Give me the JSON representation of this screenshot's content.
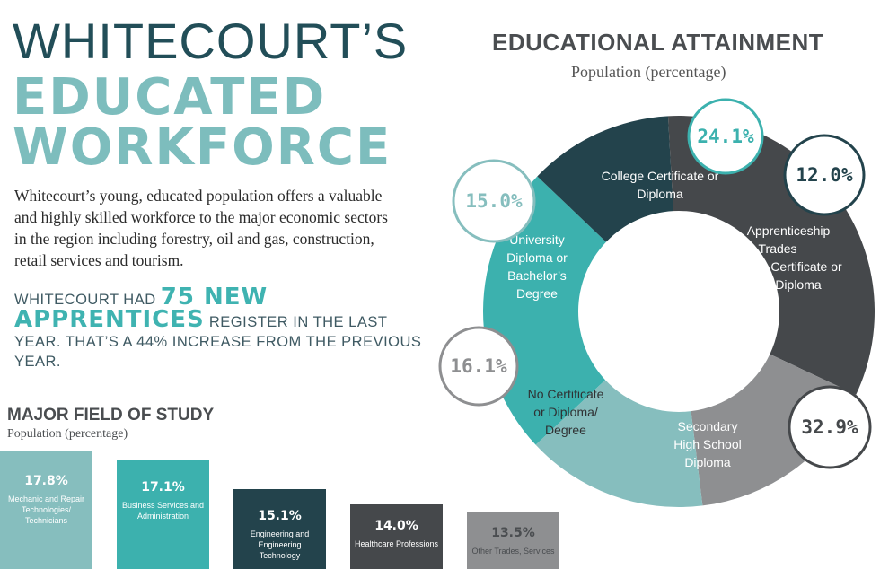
{
  "header": {
    "line1": "WHITECOURT’S",
    "line2": "EDUCATED",
    "line3": "WORKFORCE"
  },
  "intro": "Whitecourt’s young, educated population offers a valuable and highly skilled workforce to the major economic sectors in the region including forestry, oil and gas, construction, retail services and tourism.",
  "apprentices": {
    "before": "WHITECOURT HAD ",
    "highlight": "75 NEW APPRENTICES",
    "after": " REGISTER IN THE LAST YEAR.  THAT’S A 44% INCREASE FROM THE PREVIOUS YEAR."
  },
  "chart_data": [
    {
      "type": "pie",
      "title": "EDUCATIONAL ATTAINMENT",
      "subtitle": "Population (percentage)",
      "donut": true,
      "slices": [
        {
          "label": "College Certificate or Diploma",
          "value": 24.1,
          "display": "24.1%",
          "color": "#3cb1ae"
        },
        {
          "label": "Apprenticeship or Trades Certificate or Diploma",
          "value": 12.0,
          "display": "12.0%",
          "color": "#23434c"
        },
        {
          "label": "Secondary High School Diploma",
          "value": 32.9,
          "display": "32.9%",
          "color": "#45484b"
        },
        {
          "label": "No Certificate or Diploma/ Degree",
          "value": 16.1,
          "display": "16.1%",
          "color": "#8e8f91"
        },
        {
          "label": "University Diploma or Bachelor’s Degree",
          "value": 15.0,
          "display": "15.0%",
          "color": "#86bebe"
        }
      ]
    },
    {
      "type": "bar",
      "title": "MAJOR FIELD OF STUDY",
      "subtitle": "Population (percentage)",
      "categories": [
        "Mechanic and Repair Technologies/ Technicians",
        "Business Services and Administration",
        "Engineering and Engineering Technology",
        "Healthcare Professions",
        "Other Trades, Services"
      ],
      "values": [
        17.8,
        17.1,
        15.1,
        14.0,
        13.5
      ],
      "displays": [
        "17.8%",
        "17.1%",
        "15.1%",
        "14.0%",
        "13.5%"
      ],
      "colors": [
        "#86bebe",
        "#3cb1ae",
        "#23434c",
        "#45484b",
        "#8e8f91"
      ]
    }
  ]
}
